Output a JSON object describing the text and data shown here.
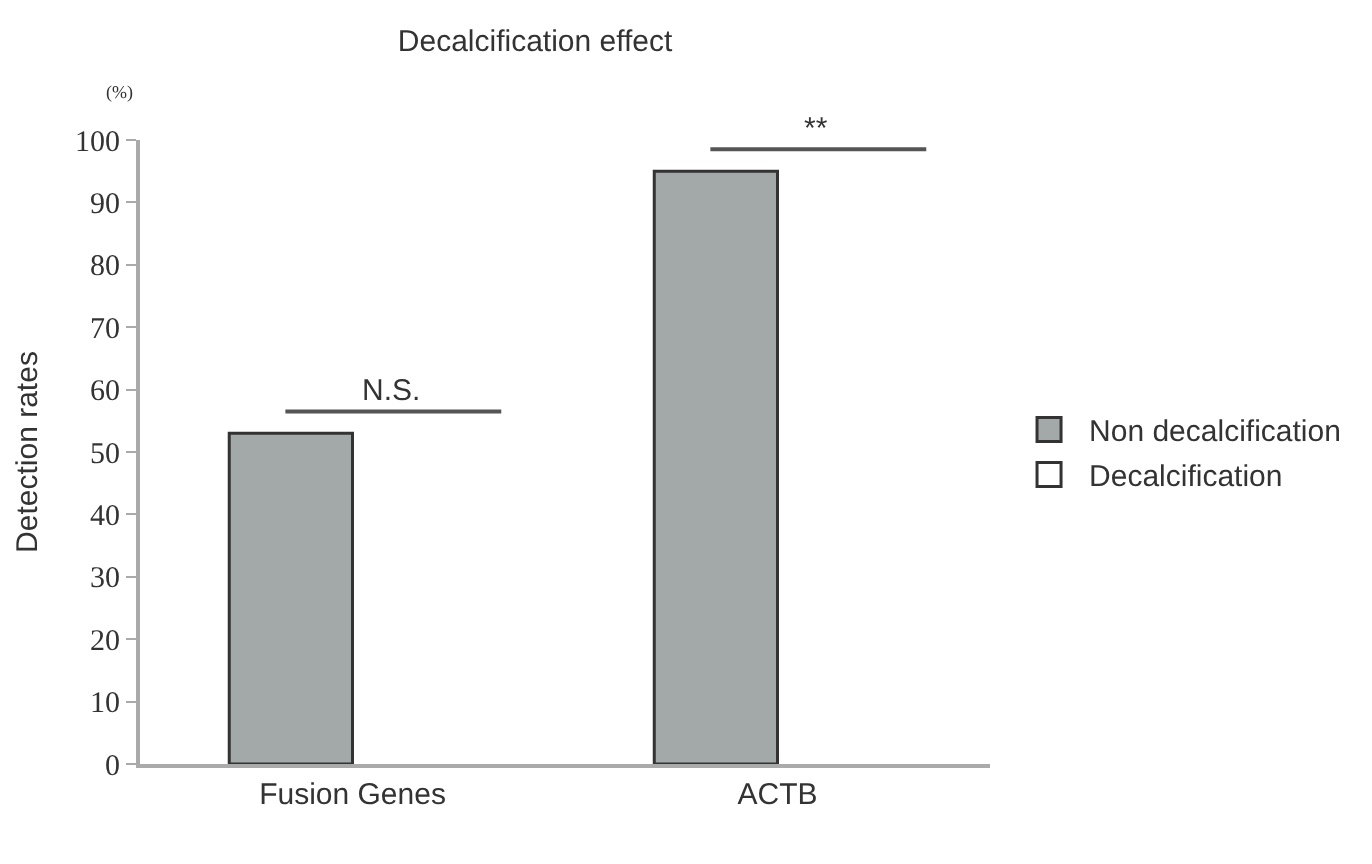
{
  "chart_data": {
    "type": "bar",
    "title": "Decalcification effect",
    "ylabel": "Detection rates",
    "categories": [
      "Fusion Genes",
      "ACTB"
    ],
    "series": [
      {
        "name": "Non decalcification",
        "color": "#a3a8a8",
        "values": [
          53,
          95
        ]
      },
      {
        "name": "Decalcification",
        "color": "#ffffff",
        "values": [
          null,
          null
        ]
      }
    ],
    "ylim": [
      0,
      100
    ],
    "yticks": [
      0,
      10,
      20,
      30,
      40,
      50,
      60,
      70,
      80,
      90,
      100
    ],
    "legend": "right",
    "annotations": [
      "(%)",
      "N.S.",
      "**"
    ]
  }
}
